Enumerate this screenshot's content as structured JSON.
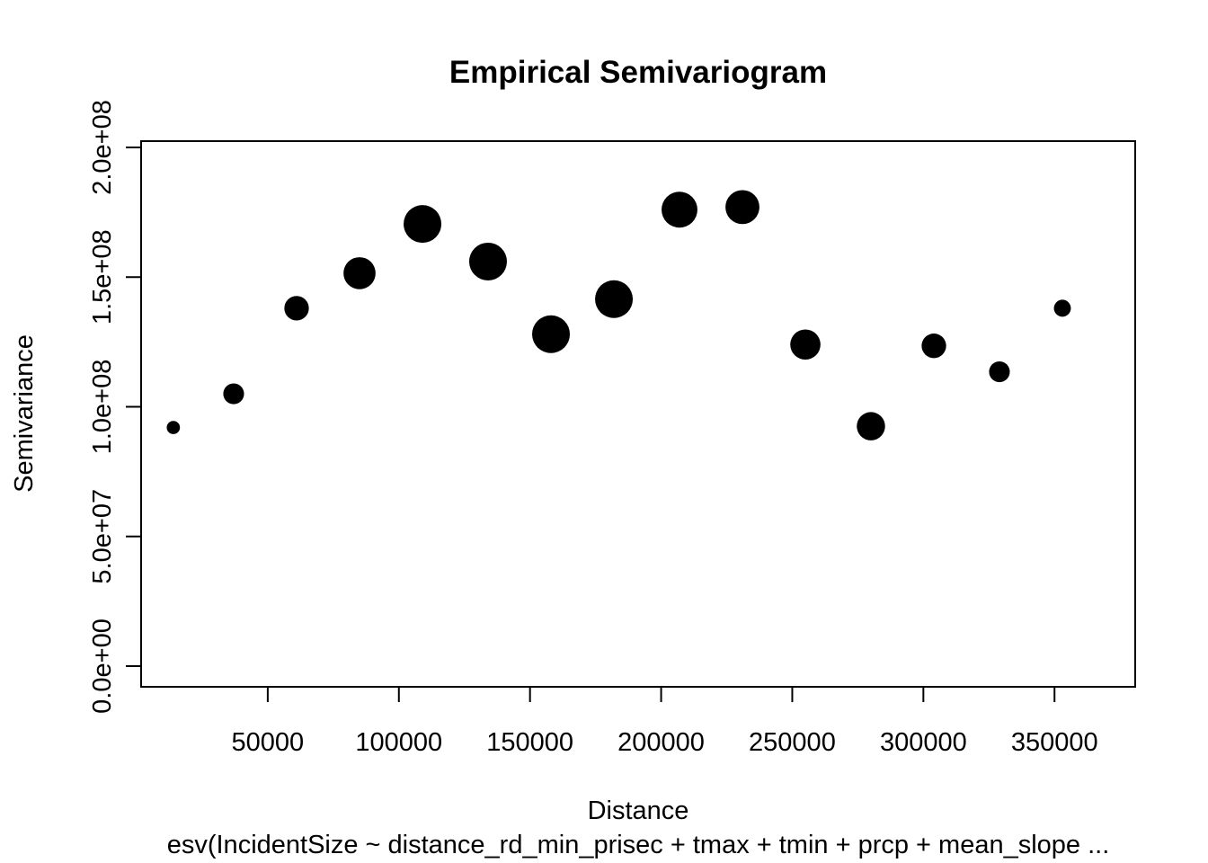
{
  "chart_data": {
    "type": "scatter",
    "title": "Empirical Semivariogram",
    "xlabel": "Distance",
    "ylabel": "Semivariance",
    "subtitle": "esv(IncidentSize ~ distance_rd_min_prisec + tmax + tmin + prcp + mean_slope ...",
    "xlim": [
      0,
      365000
    ],
    "ylim": [
      0,
      200000000
    ],
    "x_ticks": [
      50000,
      100000,
      150000,
      200000,
      250000,
      300000,
      350000
    ],
    "x_tick_labels": [
      "50000",
      "100000",
      "150000",
      "200000",
      "250000",
      "300000",
      "350000"
    ],
    "y_ticks": [
      0,
      50000000,
      100000000,
      150000000,
      200000000
    ],
    "y_tick_labels": [
      "0.0e+00",
      "5.0e+07",
      "1.0e+08",
      "1.5e+08",
      "2.0e+08"
    ],
    "grid": false,
    "marker_color": "#000000",
    "points": [
      {
        "x": 14000,
        "y": 92000000,
        "size": 0.35
      },
      {
        "x": 37000,
        "y": 105000000,
        "size": 0.55
      },
      {
        "x": 61000,
        "y": 138000000,
        "size": 0.65
      },
      {
        "x": 85000,
        "y": 151500000,
        "size": 0.85
      },
      {
        "x": 109000,
        "y": 170500000,
        "size": 1.0
      },
      {
        "x": 134000,
        "y": 156000000,
        "size": 1.0
      },
      {
        "x": 158000,
        "y": 128000000,
        "size": 1.0
      },
      {
        "x": 182000,
        "y": 141500000,
        "size": 1.0
      },
      {
        "x": 207000,
        "y": 176000000,
        "size": 0.95
      },
      {
        "x": 231000,
        "y": 177000000,
        "size": 0.9
      },
      {
        "x": 255000,
        "y": 124000000,
        "size": 0.8
      },
      {
        "x": 280000,
        "y": 92500000,
        "size": 0.75
      },
      {
        "x": 304000,
        "y": 123500000,
        "size": 0.65
      },
      {
        "x": 329000,
        "y": 113500000,
        "size": 0.55
      },
      {
        "x": 353000,
        "y": 138000000,
        "size": 0.45
      }
    ]
  }
}
